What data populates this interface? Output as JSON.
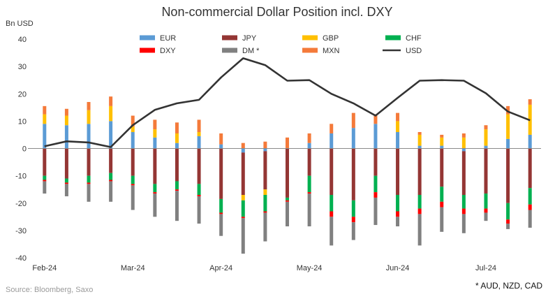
{
  "chart_data": {
    "type": "bar",
    "subtype": "stacked-bar-with-line",
    "title": "Non-commercial Dollar Position incl. DXY",
    "ylabel": "Bn USD",
    "xlabel": "",
    "ylim": [
      -40,
      40
    ],
    "yticks": [
      -40,
      -30,
      -20,
      -10,
      0,
      10,
      20,
      30,
      40
    ],
    "x_tick_labels": [
      "Feb-24",
      "Mar-24",
      "Apr-24",
      "May-24",
      "Jun-24",
      "Jul-24"
    ],
    "x_tick_indices": [
      0,
      4,
      8,
      12,
      16,
      20
    ],
    "grid": false,
    "legend_position": "top",
    "legend": [
      {
        "name": "EUR",
        "color": "#5b9bd5",
        "kind": "bar"
      },
      {
        "name": "JPY",
        "color": "#943634",
        "kind": "bar"
      },
      {
        "name": "GBP",
        "color": "#ffc000",
        "kind": "bar"
      },
      {
        "name": "CHF",
        "color": "#00b050",
        "kind": "bar"
      },
      {
        "name": "DXY",
        "color": "#ff0000",
        "kind": "bar"
      },
      {
        "name": "DM *",
        "color": "#808080",
        "kind": "bar"
      },
      {
        "name": "MXN",
        "color": "#f47a3a",
        "kind": "bar"
      },
      {
        "name": "USD",
        "color": "#333333",
        "kind": "line"
      }
    ],
    "bar_series": [
      {
        "name": "EUR",
        "color": "#5b9bd5",
        "values": [
          9,
          8.5,
          9,
          10,
          6,
          4,
          2,
          4.5,
          1.5,
          -1.5,
          -1,
          0,
          2,
          5.5,
          7.5,
          9,
          6,
          1,
          1,
          -1,
          1,
          3.5,
          5
        ]
      },
      {
        "name": "JPY",
        "color": "#943634",
        "values": [
          -10,
          -11,
          -10,
          -9,
          -10,
          -13,
          -12,
          -13,
          -18.5,
          -15.5,
          -14,
          -18,
          -10,
          -17,
          -19,
          -10,
          -17,
          -17,
          -14,
          -16,
          -16.5,
          -20,
          -14.5
        ]
      },
      {
        "name": "GBP",
        "color": "#ffc000",
        "values": [
          3.5,
          3.5,
          5,
          5.5,
          2,
          3,
          3.5,
          1.5,
          0,
          -2,
          -2,
          0,
          0,
          0,
          0,
          0,
          4,
          4,
          3,
          4,
          6,
          9,
          11
        ]
      },
      {
        "name": "CHF",
        "color": "#00b050",
        "values": [
          -1.5,
          -1.5,
          -2.5,
          -2.5,
          -3,
          -3,
          -3,
          -4,
          -5,
          -6,
          -6,
          -1,
          -6,
          -6,
          -6,
          -6,
          -6,
          -5,
          -5.5,
          -5,
          -5.5,
          -6,
          -6
        ]
      },
      {
        "name": "DXY",
        "color": "#ff0000",
        "values": [
          -0.5,
          -0.5,
          -0.5,
          -0.5,
          -0.5,
          -0.5,
          -0.5,
          -0.5,
          -0.5,
          -0.5,
          -0.5,
          -0.5,
          -0.5,
          -2,
          -2,
          -2,
          -2,
          -2,
          -2,
          -2,
          -1.5,
          -1.5,
          -2
        ]
      },
      {
        "name": "DM *",
        "color": "#808080",
        "values": [
          -4.5,
          -4.5,
          -6.5,
          -7.5,
          -9,
          -8.5,
          -11,
          -10,
          -8,
          -13,
          -10.5,
          -9,
          -12,
          -10.5,
          -6.5,
          -10,
          -3.5,
          -11.5,
          -9,
          -7,
          -3,
          -2,
          -6.5
        ]
      },
      {
        "name": "MXN",
        "color": "#f47a3a",
        "values": [
          3,
          2.5,
          3,
          3.5,
          4,
          3.5,
          4,
          4.5,
          4,
          2,
          2.5,
          4,
          3.5,
          3.5,
          5.5,
          3.5,
          3,
          1,
          1,
          1.5,
          1.5,
          3,
          2
        ]
      }
    ],
    "line_series": {
      "name": "USD",
      "color": "#333333",
      "values": [
        0.8,
        2.6,
        2.2,
        0.5,
        8.5,
        14.1,
        16.5,
        17.8,
        26,
        33,
        30.5,
        24.8,
        25,
        20,
        16.5,
        12,
        18.5,
        24.8,
        25,
        24.8,
        20.2,
        13.5,
        10.3
      ]
    },
    "source": "Source: Bloomberg, Saxo",
    "footnote": "* AUD, NZD, CAD"
  }
}
